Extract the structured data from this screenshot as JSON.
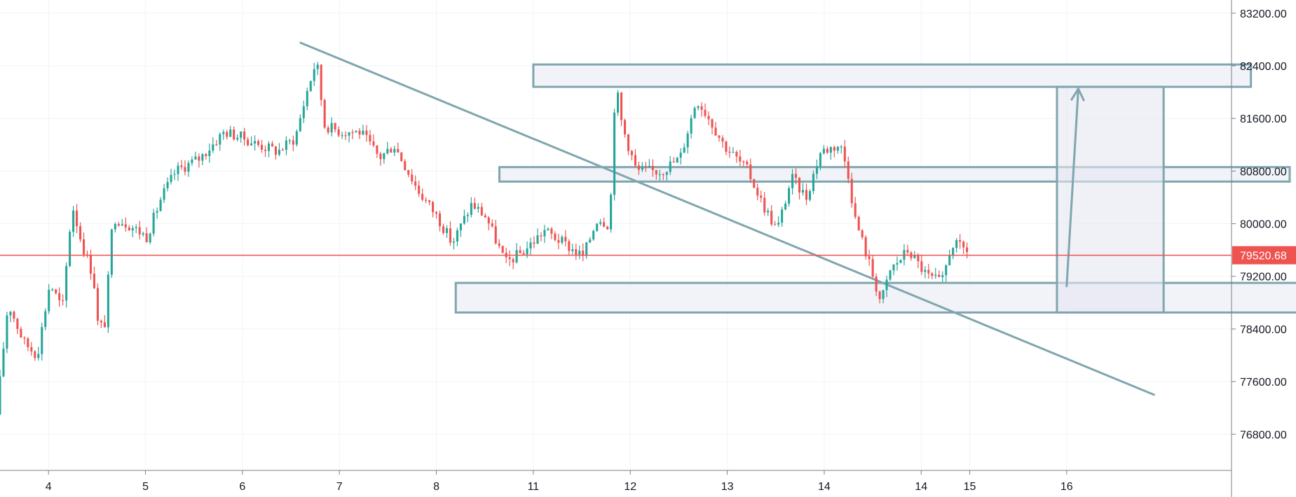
{
  "chart_data": {
    "type": "candlestick",
    "title": "",
    "xlabel": "",
    "ylabel": "",
    "x_ticks": [
      {
        "label": "4",
        "day": 4
      },
      {
        "label": "5",
        "day": 5
      },
      {
        "label": "6",
        "day": 6
      },
      {
        "label": "7",
        "day": 7
      },
      {
        "label": "8",
        "day": 8
      },
      {
        "label": "11",
        "day": 9
      },
      {
        "label": "12",
        "day": 10
      },
      {
        "label": "13",
        "day": 11
      },
      {
        "label": "14",
        "day": 12
      },
      {
        "label": "14",
        "day": 13
      },
      {
        "label": "15",
        "day": 13.5
      },
      {
        "label": "16",
        "day": 14.5
      }
    ],
    "xlim": [
      3.5,
      16.2
    ],
    "y_ticks": [
      "83200.00",
      "82400.00",
      "81600.00",
      "80800.00",
      "80000.00",
      "79200.00",
      "78400.00",
      "77600.00",
      "76800.00"
    ],
    "ylim": [
      76250,
      83400
    ],
    "grid": true,
    "current_price": {
      "value": 79520.68,
      "label": "79520.68"
    },
    "colors": {
      "up": "#26a69a",
      "down": "#ef5350",
      "price_line": "#ef5350",
      "drawing": "#7fa6ad",
      "zone_fill": "#f0f0f8",
      "projection_fill": "#e6e6f2",
      "grid": "#f0f3fa",
      "axis_text": "#131722"
    },
    "candle_path": [
      [
        3.5,
        77100
      ],
      [
        3.62,
        78800
      ],
      [
        3.78,
        78200
      ],
      [
        3.92,
        78000
      ],
      [
        4.05,
        79100
      ],
      [
        4.18,
        78700
      ],
      [
        4.28,
        80300
      ],
      [
        4.38,
        79700
      ],
      [
        4.5,
        79200
      ],
      [
        4.55,
        78400
      ],
      [
        4.62,
        78500
      ],
      [
        4.7,
        80100
      ],
      [
        4.85,
        80000
      ],
      [
        5.05,
        79800
      ],
      [
        5.2,
        80400
      ],
      [
        5.35,
        80800
      ],
      [
        5.6,
        81000
      ],
      [
        5.85,
        81400
      ],
      [
        6.05,
        81300
      ],
      [
        6.2,
        81200
      ],
      [
        6.4,
        81100
      ],
      [
        6.58,
        81300
      ],
      [
        6.7,
        82000
      ],
      [
        6.8,
        82500
      ],
      [
        6.88,
        81500
      ],
      [
        7.05,
        81400
      ],
      [
        7.25,
        81400
      ],
      [
        7.45,
        81000
      ],
      [
        7.6,
        81200
      ],
      [
        7.85,
        80500
      ],
      [
        8.05,
        80100
      ],
      [
        8.2,
        79700
      ],
      [
        8.4,
        80300
      ],
      [
        8.55,
        80100
      ],
      [
        8.75,
        79400
      ],
      [
        8.95,
        79600
      ],
      [
        9.15,
        79900
      ],
      [
        9.35,
        79700
      ],
      [
        9.55,
        79500
      ],
      [
        9.7,
        80100
      ],
      [
        9.8,
        80000
      ],
      [
        9.85,
        80600
      ],
      [
        9.88,
        82200
      ],
      [
        9.95,
        81500
      ],
      [
        10.1,
        80800
      ],
      [
        10.35,
        80800
      ],
      [
        10.55,
        81000
      ],
      [
        10.72,
        81900
      ],
      [
        10.85,
        81600
      ],
      [
        11.0,
        81200
      ],
      [
        11.25,
        80800
      ],
      [
        11.4,
        80300
      ],
      [
        11.55,
        79900
      ],
      [
        11.7,
        80700
      ],
      [
        11.85,
        80400
      ],
      [
        12.0,
        81100
      ],
      [
        12.2,
        81200
      ],
      [
        12.28,
        80800
      ],
      [
        12.35,
        80100
      ],
      [
        12.5,
        79400
      ],
      [
        12.62,
        78800
      ],
      [
        12.72,
        79300
      ],
      [
        12.9,
        79600
      ],
      [
        13.1,
        79200
      ],
      [
        13.25,
        79100
      ],
      [
        13.35,
        79700
      ],
      [
        13.5,
        79600
      ]
    ],
    "drawings": [
      {
        "type": "trendline",
        "points": [
          [
            6.6,
            82750
          ],
          [
            15.4,
            77400
          ]
        ]
      },
      {
        "type": "zone",
        "x": [
          9.0,
          16.4
        ],
        "y": [
          82080,
          82420
        ]
      },
      {
        "type": "zone",
        "x": [
          8.65,
          16.8
        ],
        "y": [
          80640,
          80860
        ]
      },
      {
        "type": "zone",
        "x": [
          8.2,
          16.9
        ],
        "y": [
          78650,
          79100
        ]
      },
      {
        "type": "projection_box",
        "x": [
          14.4,
          15.5
        ],
        "y": [
          78650,
          82080
        ]
      },
      {
        "type": "arrow",
        "points": [
          [
            14.5,
            79050
          ],
          [
            14.62,
            82050
          ]
        ]
      }
    ]
  }
}
